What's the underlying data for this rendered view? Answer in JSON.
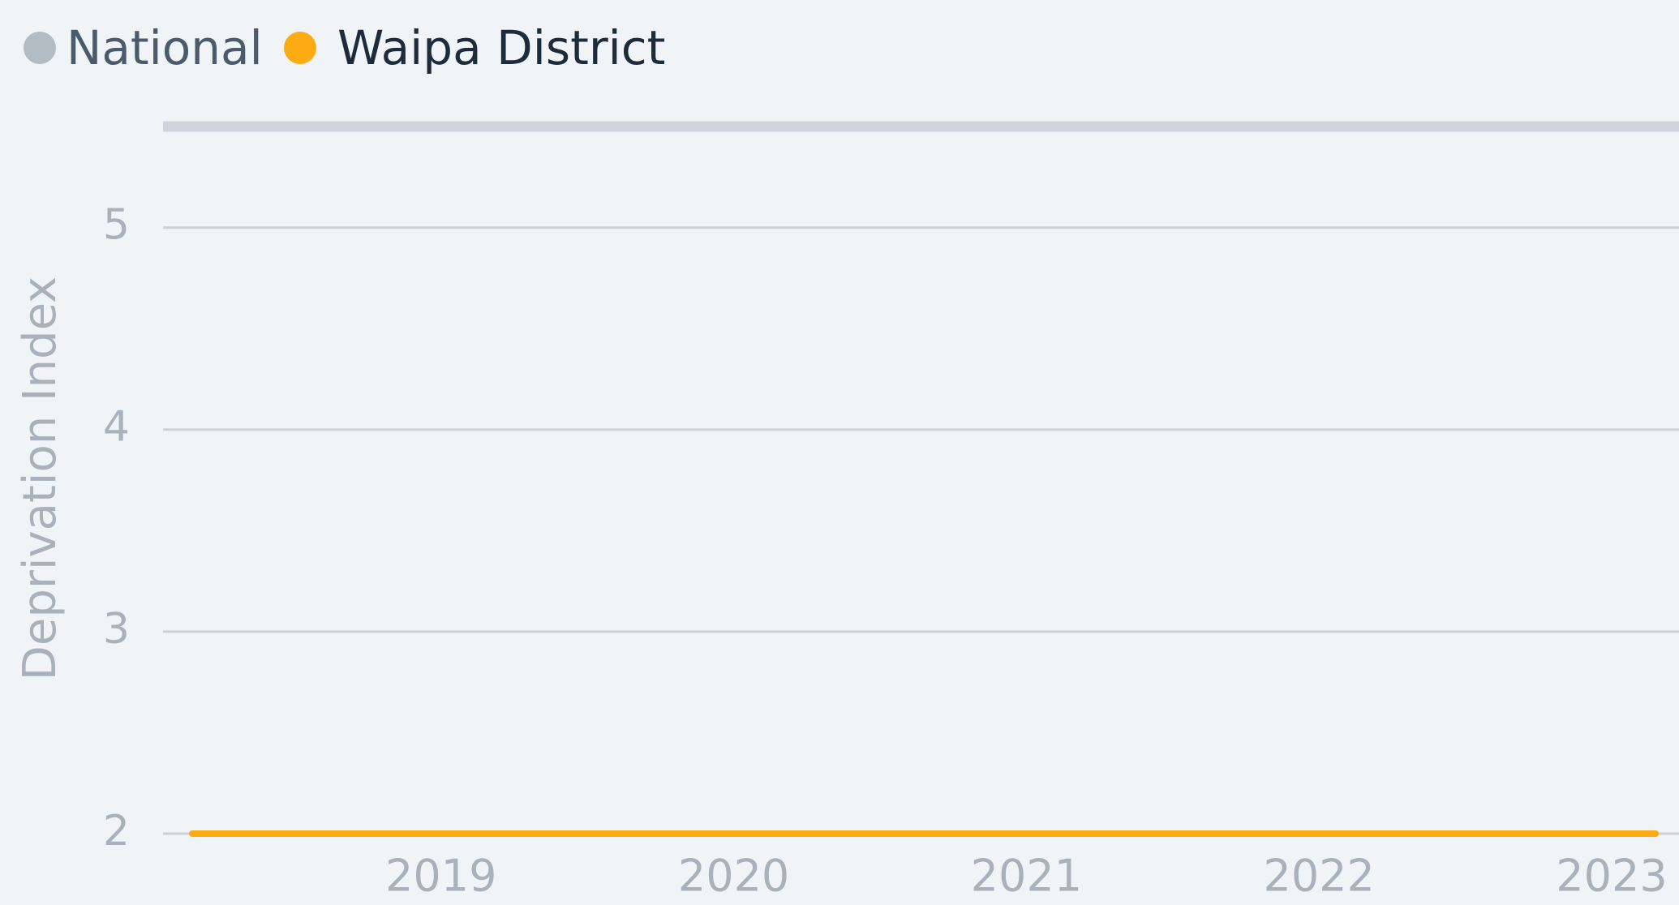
{
  "chart_data": {
    "type": "line",
    "y_label": "Deprivation Index",
    "series": [
      {
        "name": "National",
        "color": "#cfd5db",
        "legend_color": "#b3bbc3",
        "x": [
          2018.05,
          2023.23
        ],
        "values": [
          5.5,
          5.5
        ]
      },
      {
        "name": "Waipa District",
        "color": "#fdab13",
        "legend_color": "#fdab13",
        "x": [
          2018.15,
          2023.15
        ],
        "values": [
          2,
          2
        ]
      }
    ],
    "xlim": [
      2018.05,
      2023.23
    ],
    "xticks": [
      2019,
      2020,
      2021,
      2022,
      2023
    ],
    "ylim": [
      2,
      5.5
    ],
    "yticks": [
      2,
      3,
      4,
      5
    ],
    "grid": true
  }
}
